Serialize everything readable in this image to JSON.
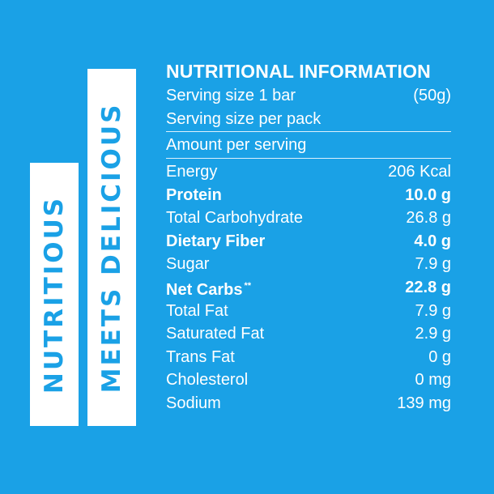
{
  "slogan": {
    "line1": "NUTRITIOUS",
    "line2": "MEETS DELICIOUS"
  },
  "colors": {
    "background": "#1aa1e6",
    "foreground": "#ffffff"
  },
  "nutrition": {
    "title": "NUTRITIONAL INFORMATION",
    "serving_size": {
      "label": "Serving size 1 bar",
      "value": "(50g)"
    },
    "servings_per_pack": {
      "label": "Serving size per pack",
      "value": ""
    },
    "amount_per_serving": "Amount per serving",
    "rows": [
      {
        "label": "Energy",
        "value": "206 Kcal",
        "bold": false
      },
      {
        "label": "Protein",
        "value": "10.0 g",
        "bold": true
      },
      {
        "label": "Total Carbohydrate",
        "value": "26.8 g",
        "bold": false
      },
      {
        "label": "Dietary Fiber",
        "value": "4.0 g",
        "bold": true
      },
      {
        "label": "Sugar",
        "value": "7.9 g",
        "bold": false
      },
      {
        "label": "Net Carbs",
        "mark": "**",
        "value": "22.8 g",
        "bold": true
      },
      {
        "label": "Total Fat",
        "value": "7.9 g",
        "bold": false
      },
      {
        "label": "Saturated Fat",
        "value": "2.9 g",
        "bold": false
      },
      {
        "label": "Trans Fat",
        "value": "0 g",
        "bold": false
      },
      {
        "label": "Cholesterol",
        "value": "0 mg",
        "bold": false
      },
      {
        "label": "Sodium",
        "value": "139 mg",
        "bold": false
      }
    ]
  }
}
